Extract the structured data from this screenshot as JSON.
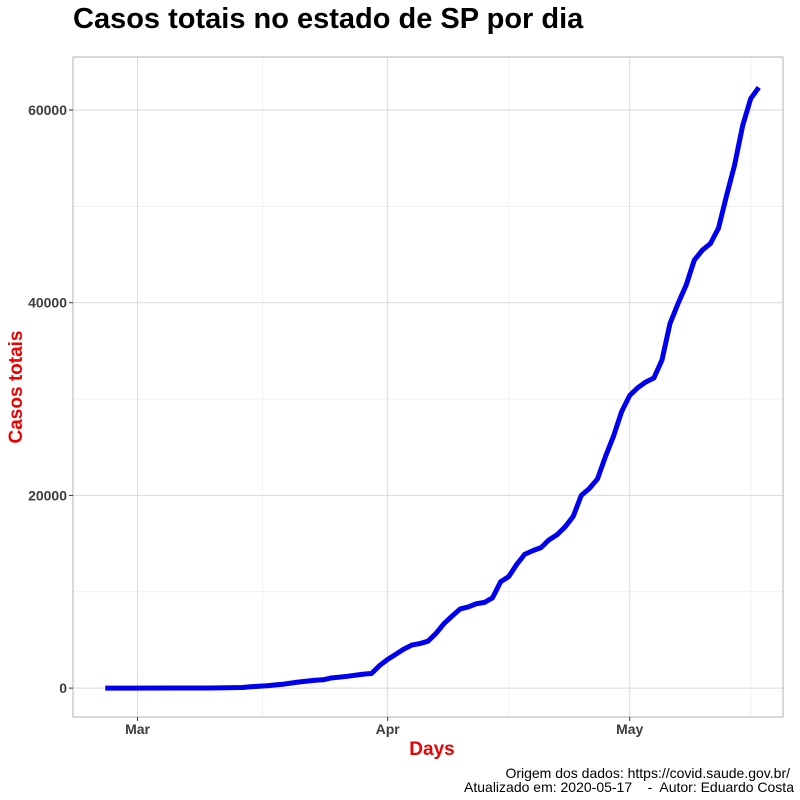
{
  "chart_data": {
    "type": "line",
    "title": "Casos totais no estado de SP por dia",
    "xlabel": "Days",
    "ylabel": "Casos totais",
    "x_ticks": [
      {
        "date": "2020-03-01",
        "label": "Mar"
      },
      {
        "date": "2020-04-01",
        "label": "Apr"
      },
      {
        "date": "2020-05-01",
        "label": "May"
      }
    ],
    "y_ticks": [
      0,
      20000,
      40000,
      60000
    ],
    "xlim": [
      "2020-02-22",
      "2020-05-20"
    ],
    "ylim": [
      -3000,
      65500
    ],
    "grid": true,
    "colors": {
      "line": "#0000ee",
      "axis_title": "#ee0000",
      "grid_major": "#d9d9d9",
      "grid_minor": "#ececec",
      "panel_border": "#b3b3b3"
    },
    "series": [
      {
        "x": [
          "2020-02-26",
          "2020-02-29",
          "2020-03-05",
          "2020-03-10",
          "2020-03-14",
          "2020-03-15",
          "2020-03-17",
          "2020-03-19",
          "2020-03-21",
          "2020-03-23",
          "2020-03-24",
          "2020-03-25",
          "2020-03-27",
          "2020-03-29",
          "2020-03-30",
          "2020-03-31",
          "2020-04-01",
          "2020-04-02",
          "2020-04-03",
          "2020-04-04",
          "2020-04-05",
          "2020-04-06",
          "2020-04-07",
          "2020-04-08",
          "2020-04-09",
          "2020-04-10",
          "2020-04-11",
          "2020-04-12",
          "2020-04-13",
          "2020-04-14",
          "2020-04-15",
          "2020-04-16",
          "2020-04-17",
          "2020-04-18",
          "2020-04-19",
          "2020-04-20",
          "2020-04-21",
          "2020-04-22",
          "2020-04-23",
          "2020-04-24",
          "2020-04-25",
          "2020-04-26",
          "2020-04-27",
          "2020-04-28",
          "2020-04-29",
          "2020-04-30",
          "2020-05-01",
          "2020-05-02",
          "2020-05-03",
          "2020-05-04",
          "2020-05-05",
          "2020-05-06",
          "2020-05-07",
          "2020-05-08",
          "2020-05-09",
          "2020-05-10",
          "2020-05-11",
          "2020-05-12",
          "2020-05-13",
          "2020-05-14",
          "2020-05-15",
          "2020-05-16",
          "2020-05-17"
        ],
        "values": [
          1,
          2,
          6,
          16,
          65,
          136,
          240,
          396,
          631,
          810,
          862,
          1052,
          1223,
          1451,
          1517,
          2339,
          2981,
          3506,
          4048,
          4466,
          4620,
          4866,
          5682,
          6708,
          7480,
          8216,
          8419,
          8755,
          8895,
          9371,
          11043,
          11568,
          12841,
          13894,
          14267,
          14580,
          15385,
          15914,
          16740,
          17826,
          20004,
          20715,
          21696,
          24041,
          26158,
          28698,
          30374,
          31174,
          31772,
          32187,
          34053,
          37853,
          39928,
          41830,
          44411,
          45444,
          46131,
          47719,
          51097,
          54286,
          58378,
          61183,
          62345
        ]
      }
    ],
    "caption": {
      "line1": "Origem dos dados: https://covid.saude.gov.br/",
      "line2": "Atualizado em: 2020-05-17    -  Autor: Eduardo Costa"
    }
  }
}
